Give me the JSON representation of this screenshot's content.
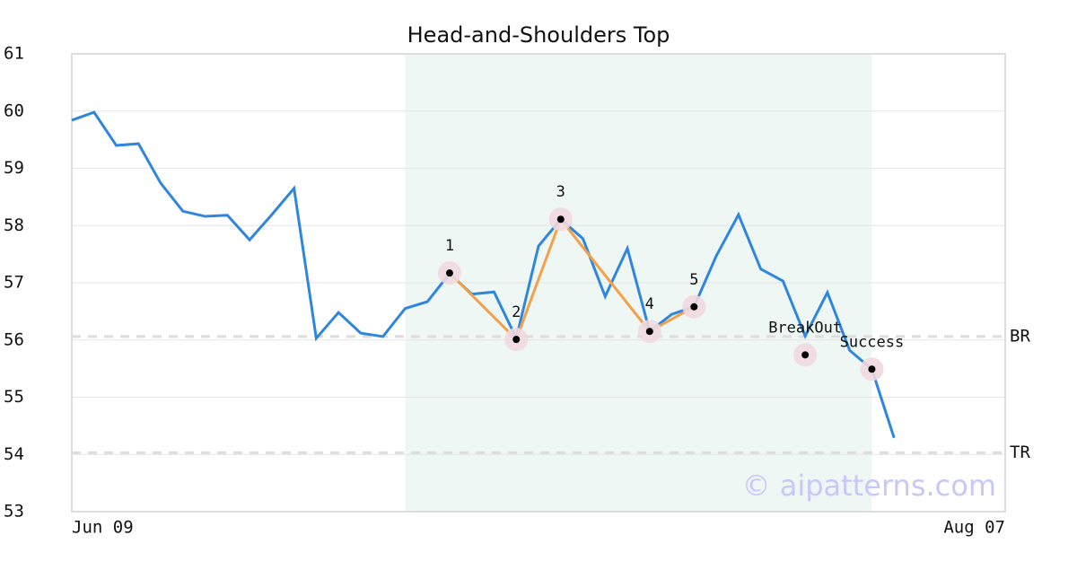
{
  "chart_data": {
    "type": "line",
    "title": "Head-and-Shoulders Top",
    "x": [
      0,
      1,
      2,
      3,
      4,
      5,
      6,
      7,
      8,
      9,
      10,
      11,
      12,
      13,
      14,
      15,
      16,
      17,
      18,
      19,
      20,
      21,
      22,
      23,
      24,
      25,
      26,
      27,
      28,
      29,
      30,
      31,
      32,
      33,
      34,
      35,
      36,
      37
    ],
    "series": [
      {
        "color": "#2e86de",
        "values": [
          59.84,
          59.98,
          59.4,
          59.43,
          58.74,
          58.25,
          58.16,
          58.18,
          57.75,
          58.19,
          58.65,
          56.03,
          56.48,
          56.12,
          56.06,
          56.55,
          56.67,
          57.16,
          56.8,
          56.84,
          56.03,
          57.64,
          58.11,
          57.77,
          56.76,
          57.6,
          56.15,
          56.45,
          56.58,
          57.47,
          58.19,
          57.24,
          57.03,
          56.07,
          56.83,
          55.82,
          55.49,
          54.29
        ]
      }
    ],
    "xlim": [
      0,
      42
    ],
    "xticks": [
      {
        "value": 0,
        "label": "Jun 09"
      },
      {
        "value": 42,
        "label": "Aug 07"
      }
    ],
    "ylim": [
      53,
      61
    ],
    "yticks": [
      53,
      54,
      55,
      56,
      57,
      58,
      59,
      60,
      61
    ],
    "grid": true,
    "highlight": [
      15,
      36
    ],
    "highlight_color": "#eef7f3",
    "pattern": {
      "color": "#f4a04a",
      "labels": [
        "1",
        "2",
        "3",
        "4",
        "5"
      ],
      "x": [
        17,
        20,
        22,
        26,
        28
      ],
      "values": [
        57.17,
        56.01,
        58.11,
        56.15,
        56.58
      ]
    },
    "signals": {
      "labels": [
        "BreakOut",
        "Success"
      ],
      "x": [
        33,
        36
      ],
      "values": [
        55.74,
        55.49
      ]
    },
    "hlines": [
      {
        "label": "BR",
        "value": 56.06
      },
      {
        "label": "TR",
        "value": 54.03
      }
    ],
    "watermark": "© aipatterns.com"
  }
}
